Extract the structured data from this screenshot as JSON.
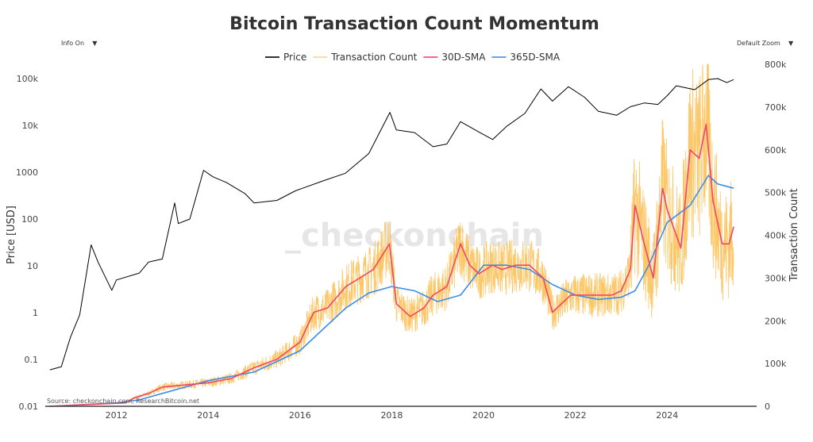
{
  "controls": {
    "info": "Info On",
    "zoom": "Default Zoom",
    "arrow": "▼"
  },
  "watermark": "_checkonchain",
  "source": "Source: checkonchain.com, ResearchBitcoin.net",
  "chart_data": {
    "type": "line",
    "title": "Bitcoin Transaction Count Momentum",
    "ylabel": "Price [USD]",
    "y2label": "Transaction Count",
    "xlim": [
      2010.45,
      2025.95
    ],
    "ylim": [
      0.01,
      100000
    ],
    "yscale": "log",
    "y2lim": [
      0,
      800000
    ],
    "xticks": [
      "2012",
      "2014",
      "2016",
      "2018",
      "2020",
      "2022",
      "2024"
    ],
    "yticks": [
      "0.01",
      "0.1",
      "1",
      "10",
      "100",
      "1000",
      "10k",
      "100k"
    ],
    "y2ticks": [
      "0",
      "100k",
      "200k",
      "300k",
      "400k",
      "500k",
      "600k",
      "700k",
      "800k"
    ],
    "legend_position": "top-center",
    "series": [
      {
        "name": "Price",
        "color": "#000000",
        "axis": "left",
        "points": [
          [
            2010.55,
            0.06
          ],
          [
            2010.8,
            0.07
          ],
          [
            2011.0,
            0.3
          ],
          [
            2011.2,
            0.9
          ],
          [
            2011.45,
            28
          ],
          [
            2011.6,
            12
          ],
          [
            2011.9,
            3
          ],
          [
            2012.0,
            5
          ],
          [
            2012.5,
            7
          ],
          [
            2012.7,
            12
          ],
          [
            2013.0,
            14
          ],
          [
            2013.27,
            220
          ],
          [
            2013.35,
            80
          ],
          [
            2013.6,
            100
          ],
          [
            2013.9,
            1100
          ],
          [
            2014.1,
            800
          ],
          [
            2014.4,
            600
          ],
          [
            2014.8,
            350
          ],
          [
            2015.0,
            220
          ],
          [
            2015.5,
            250
          ],
          [
            2015.9,
            400
          ],
          [
            2016.5,
            650
          ],
          [
            2016.99,
            950
          ],
          [
            2017.5,
            2500
          ],
          [
            2017.96,
            19000
          ],
          [
            2018.1,
            8000
          ],
          [
            2018.5,
            7000
          ],
          [
            2018.9,
            3500
          ],
          [
            2019.2,
            4000
          ],
          [
            2019.5,
            12000
          ],
          [
            2019.9,
            7200
          ],
          [
            2020.2,
            5000
          ],
          [
            2020.5,
            9500
          ],
          [
            2020.9,
            18000
          ],
          [
            2021.25,
            60000
          ],
          [
            2021.5,
            33000
          ],
          [
            2021.85,
            67000
          ],
          [
            2022.2,
            40000
          ],
          [
            2022.5,
            20000
          ],
          [
            2022.9,
            16500
          ],
          [
            2023.2,
            25000
          ],
          [
            2023.5,
            30000
          ],
          [
            2023.8,
            28000
          ],
          [
            2024.0,
            43000
          ],
          [
            2024.2,
            70000
          ],
          [
            2024.6,
            58000
          ],
          [
            2024.9,
            95000
          ],
          [
            2025.1,
            100000
          ],
          [
            2025.3,
            82000
          ],
          [
            2025.45,
            95000
          ]
        ]
      },
      {
        "name": "Transaction Count",
        "color": "#fbbd4e",
        "axis": "right"
      },
      {
        "name": "30D-SMA",
        "color": "#f0466a",
        "axis": "right",
        "points": [
          [
            2010.55,
            0
          ],
          [
            2012.2,
            8
          ],
          [
            2012.4,
            20
          ],
          [
            2012.7,
            30
          ],
          [
            2013.0,
            45
          ],
          [
            2013.5,
            50
          ],
          [
            2014.0,
            55
          ],
          [
            2014.5,
            65
          ],
          [
            2015.0,
            90
          ],
          [
            2015.5,
            110
          ],
          [
            2016.0,
            150
          ],
          [
            2016.3,
            220
          ],
          [
            2016.6,
            230
          ],
          [
            2017.0,
            280
          ],
          [
            2017.3,
            300
          ],
          [
            2017.6,
            320
          ],
          [
            2017.95,
            380
          ],
          [
            2018.1,
            240
          ],
          [
            2018.4,
            210
          ],
          [
            2018.7,
            230
          ],
          [
            2018.9,
            260
          ],
          [
            2019.2,
            280
          ],
          [
            2019.5,
            380
          ],
          [
            2019.7,
            330
          ],
          [
            2019.9,
            310
          ],
          [
            2020.2,
            330
          ],
          [
            2020.4,
            320
          ],
          [
            2020.7,
            330
          ],
          [
            2021.0,
            330
          ],
          [
            2021.3,
            300
          ],
          [
            2021.5,
            220
          ],
          [
            2021.9,
            260
          ],
          [
            2022.3,
            260
          ],
          [
            2022.8,
            260
          ],
          [
            2023.0,
            270
          ],
          [
            2023.2,
            320
          ],
          [
            2023.3,
            470
          ],
          [
            2023.5,
            380
          ],
          [
            2023.7,
            300
          ],
          [
            2023.9,
            510
          ],
          [
            2024.0,
            460
          ],
          [
            2024.3,
            370
          ],
          [
            2024.5,
            600
          ],
          [
            2024.7,
            580
          ],
          [
            2024.85,
            660
          ],
          [
            2025.0,
            480
          ],
          [
            2025.2,
            380
          ],
          [
            2025.35,
            380
          ],
          [
            2025.45,
            420
          ]
        ]
      },
      {
        "name": "365D-SMA",
        "color": "#3d8ee8",
        "axis": "right",
        "points": [
          [
            2010.55,
            0
          ],
          [
            2012.0,
            8
          ],
          [
            2012.5,
            15
          ],
          [
            2013.0,
            30
          ],
          [
            2014.0,
            60
          ],
          [
            2015.0,
            80
          ],
          [
            2016.0,
            130
          ],
          [
            2016.5,
            180
          ],
          [
            2017.0,
            230
          ],
          [
            2017.5,
            265
          ],
          [
            2018.0,
            280
          ],
          [
            2018.5,
            270
          ],
          [
            2019.0,
            245
          ],
          [
            2019.5,
            260
          ],
          [
            2020.0,
            330
          ],
          [
            2020.5,
            330
          ],
          [
            2021.0,
            320
          ],
          [
            2021.5,
            285
          ],
          [
            2022.0,
            260
          ],
          [
            2022.5,
            250
          ],
          [
            2023.0,
            255
          ],
          [
            2023.3,
            270
          ],
          [
            2023.6,
            330
          ],
          [
            2024.0,
            430
          ],
          [
            2024.5,
            470
          ],
          [
            2024.9,
            540
          ],
          [
            2025.1,
            520
          ],
          [
            2025.45,
            510
          ]
        ]
      }
    ],
    "y2_units": "thousands"
  }
}
